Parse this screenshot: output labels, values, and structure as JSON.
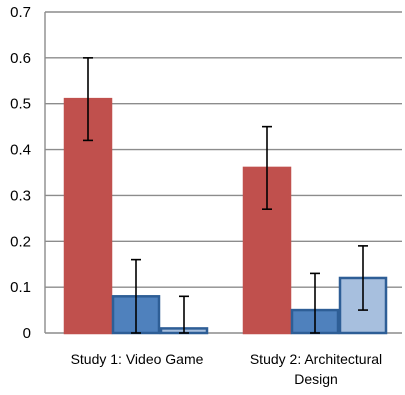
{
  "chart_data": {
    "type": "bar",
    "categories": [
      [
        "Study 1: Video Game"
      ],
      [
        "Study 2: Architectural",
        "Design"
      ]
    ],
    "ylim": [
      0,
      0.7
    ],
    "yticks": [
      "0",
      "0.1",
      "0.2",
      "0.3",
      "0.4",
      "0.5",
      "0.6",
      "0.7"
    ],
    "grid": true,
    "legend": false,
    "series": [
      {
        "values": [
          0.51,
          0.36
        ],
        "error": [
          [
            0.42,
            0.6
          ],
          [
            0.27,
            0.45
          ]
        ],
        "fill": "#c0504d",
        "stroke": "#c0504d"
      },
      {
        "values": [
          0.08,
          0.05
        ],
        "error": [
          [
            0.0,
            0.16
          ],
          [
            0.0,
            0.13
          ]
        ],
        "fill": "#4f81bd",
        "stroke": "#2e5e96"
      },
      {
        "values": [
          0.01,
          0.12
        ],
        "error": [
          [
            0.0,
            0.08
          ],
          [
            0.05,
            0.19
          ]
        ],
        "fill": "#a7bfde",
        "stroke": "#2e5e96"
      }
    ]
  }
}
